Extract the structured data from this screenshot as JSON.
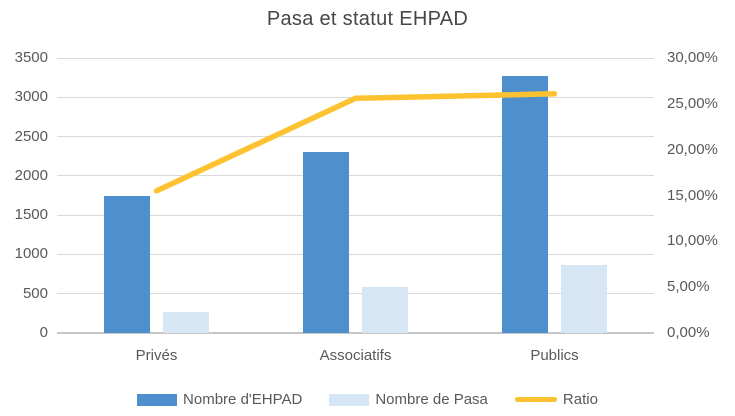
{
  "colors": {
    "ehpad_bar": "#4e90cd",
    "pasa_bar": "#d7e6f4",
    "ratio_line": "#fdc230",
    "grid": "#d9d9d9",
    "text": "#595959",
    "title": "#474747"
  },
  "chart_data": {
    "type": "bar+line combo",
    "title": "Pasa et statut EHPAD",
    "categories": [
      "Privés",
      "Associatifs",
      "Publics"
    ],
    "series": [
      {
        "name": "Nombre d'EHPAD",
        "kind": "bar",
        "axis": "left",
        "color": "#4e90cd",
        "values": [
          1750,
          2300,
          3270
        ]
      },
      {
        "name": "Nombre de Pasa",
        "kind": "bar",
        "axis": "left",
        "color": "#d7e6f4",
        "values": [
          270,
          590,
          860
        ]
      },
      {
        "name": "Ratio",
        "kind": "line",
        "axis": "right",
        "color": "#fdc230",
        "values_percent": [
          15.5,
          25.6,
          26.1
        ]
      }
    ],
    "left_axis": {
      "min": 0,
      "max": 3500,
      "ticks": [
        "3500",
        "3000",
        "2500",
        "2000",
        "1500",
        "1000",
        "500",
        "0"
      ]
    },
    "right_axis": {
      "min_percent": 0,
      "max_percent": 30,
      "ticks": [
        "30,00%",
        "25,00%",
        "20,00%",
        "15,00%",
        "10,00%",
        "5,00%",
        "0,00%"
      ]
    },
    "grid": true,
    "legend_position": "bottom"
  }
}
